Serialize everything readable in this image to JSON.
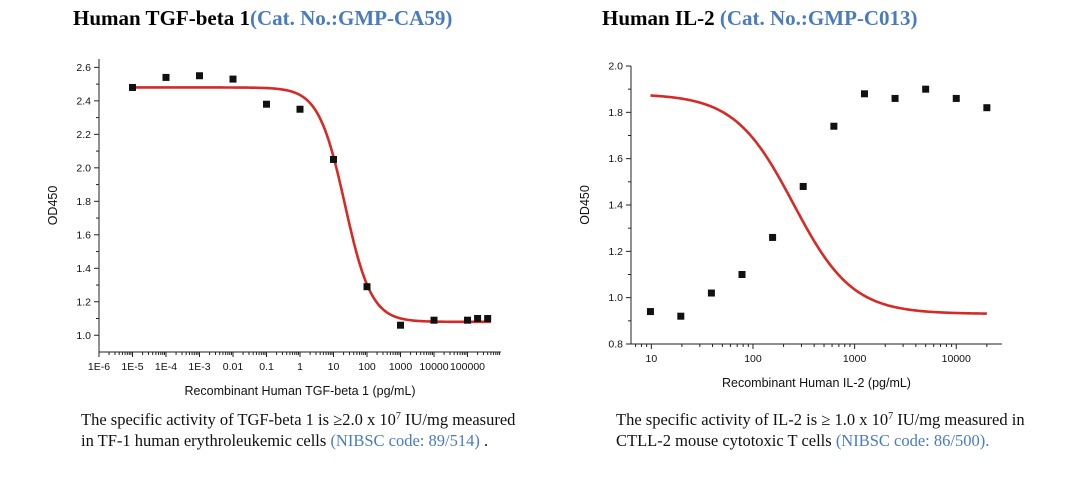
{
  "panels": [
    {
      "title_main": "Human TGF-beta 1",
      "title_cat": "(Cat. No.:GMP-CA59)",
      "caption_pre": "The specific activity of TGF-beta 1 is ≥2.0 x 10",
      "caption_sup": "7",
      "caption_mid": " IU/mg measured in TF-1 human erythroleukemic cells ",
      "caption_ref": "(NIBSC code: 89/514)",
      "caption_post": " ."
    },
    {
      "title_main": "Human IL-2",
      "title_cat": " (Cat. No.:GMP-C013)",
      "caption_pre": "The specific activity of IL-2 is ≥ 1.0 x 10",
      "caption_sup": "7",
      "caption_mid": " IU/mg measured in CTLL-2 mouse cytotoxic T cells ",
      "caption_ref": "(NIBSC code: 86/500).",
      "caption_post": ""
    }
  ],
  "colors": {
    "curve": "#d42b27",
    "points": "#111111",
    "accent": "#4a7bbf"
  },
  "chart_data": [
    {
      "type": "scatter",
      "title": "Human TGF-beta 1",
      "xlabel": "Recombinant Human TGF-beta 1 (pg/mL)",
      "ylabel": "OD450",
      "xscale": "log",
      "xlim": [
        -6,
        6
      ],
      "ylim": [
        0.9,
        2.65
      ],
      "xticks": [
        {
          "v": -6,
          "label": "1E-6"
        },
        {
          "v": -5,
          "label": "1E-5"
        },
        {
          "v": -4,
          "label": "1E-4"
        },
        {
          "v": -3,
          "label": "1E-3"
        },
        {
          "v": -2,
          "label": "0.01"
        },
        {
          "v": -1,
          "label": "0.1"
        },
        {
          "v": 0,
          "label": "1"
        },
        {
          "v": 1,
          "label": "10"
        },
        {
          "v": 2,
          "label": "100"
        },
        {
          "v": 3,
          "label": "1000"
        },
        {
          "v": 4,
          "label": "10000"
        },
        {
          "v": 5,
          "label": "100000"
        }
      ],
      "yticks": [
        {
          "v": 1.0,
          "label": "1.0"
        },
        {
          "v": 1.2,
          "label": "1.2"
        },
        {
          "v": 1.4,
          "label": "1.4"
        },
        {
          "v": 1.6,
          "label": "1.6"
        },
        {
          "v": 1.8,
          "label": "1.8"
        },
        {
          "v": 2.0,
          "label": "2.0"
        },
        {
          "v": 2.2,
          "label": "2.2"
        },
        {
          "v": 2.4,
          "label": "2.4"
        },
        {
          "v": 2.6,
          "label": "2.6"
        }
      ],
      "points": [
        {
          "x": 1e-05,
          "y": 2.48
        },
        {
          "x": 0.0001,
          "y": 2.54
        },
        {
          "x": 0.001,
          "y": 2.55
        },
        {
          "x": 0.01,
          "y": 2.53
        },
        {
          "x": 0.1,
          "y": 2.38
        },
        {
          "x": 1,
          "y": 2.35
        },
        {
          "x": 10,
          "y": 2.05
        },
        {
          "x": 100,
          "y": 1.29
        },
        {
          "x": 1000,
          "y": 1.06
        },
        {
          "x": 10000,
          "y": 1.09
        },
        {
          "x": 100000,
          "y": 1.09
        },
        {
          "x": 200000,
          "y": 1.1
        },
        {
          "x": 400000,
          "y": 1.1
        }
      ],
      "fit": {
        "model": "4PL",
        "top": 2.48,
        "bottom": 1.08,
        "ec50": 22,
        "hill": 1.1,
        "x_from": 1e-05,
        "x_to": 500000
      }
    },
    {
      "type": "scatter",
      "title": "Human IL-2",
      "xlabel": "Recombinant Human IL-2 (pg/mL)",
      "ylabel": "OD450",
      "xscale": "log",
      "xlim": [
        0.8,
        4.45
      ],
      "ylim": [
        0.8,
        2.0
      ],
      "xticks": [
        {
          "v": 1,
          "label": "10"
        },
        {
          "v": 2,
          "label": "100"
        },
        {
          "v": 3,
          "label": "1000"
        },
        {
          "v": 4,
          "label": "10000"
        }
      ],
      "yticks": [
        {
          "v": 0.8,
          "label": "0.8"
        },
        {
          "v": 1.0,
          "label": "1.0"
        },
        {
          "v": 1.2,
          "label": "1.2"
        },
        {
          "v": 1.4,
          "label": "1.4"
        },
        {
          "v": 1.6,
          "label": "1.6"
        },
        {
          "v": 1.8,
          "label": "1.8"
        },
        {
          "v": 2.0,
          "label": "2.0"
        }
      ],
      "points": [
        {
          "x": 9.8,
          "y": 0.94
        },
        {
          "x": 19.5,
          "y": 0.92
        },
        {
          "x": 39,
          "y": 1.02
        },
        {
          "x": 78,
          "y": 1.1
        },
        {
          "x": 156,
          "y": 1.26
        },
        {
          "x": 312,
          "y": 1.48
        },
        {
          "x": 625,
          "y": 1.74
        },
        {
          "x": 1250,
          "y": 1.88
        },
        {
          "x": 2500,
          "y": 1.86
        },
        {
          "x": 5000,
          "y": 1.9
        },
        {
          "x": 10000,
          "y": 1.86
        },
        {
          "x": 20000,
          "y": 1.82
        }
      ],
      "fit": {
        "model": "4PL",
        "top": 1.88,
        "bottom": 0.93,
        "ec50": 250,
        "hill": 1.5,
        "x_from": 9.8,
        "x_to": 20000
      }
    }
  ]
}
